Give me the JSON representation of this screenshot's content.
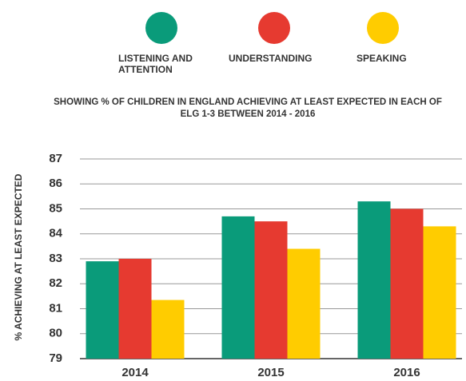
{
  "chart_data": {
    "type": "bar",
    "title": "SHOWING % OF CHILDREN IN ENGLAND ACHIEVING AT LEAST EXPECTED IN EACH OF ELG 1-3 BETWEEN 2014 - 2016",
    "y_label": "% ACHIEVING AT LEAST EXPECTED",
    "categories": [
      "2014",
      "2015",
      "2016"
    ],
    "series": [
      {
        "name": "LISTENING AND ATTENTION",
        "color": "#0a9b7a",
        "values": [
          82.9,
          84.7,
          85.3
        ]
      },
      {
        "name": "UNDERSTANDING",
        "color": "#e63a30",
        "values": [
          83.0,
          84.5,
          85.0
        ]
      },
      {
        "name": "SPEAKING",
        "color": "#ffcc00",
        "values": [
          81.35,
          83.4,
          84.3
        ]
      }
    ],
    "ylim": [
      79,
      87
    ],
    "yticks": [
      79,
      80,
      81,
      82,
      83,
      84,
      85,
      86,
      87
    ],
    "grid": true
  }
}
